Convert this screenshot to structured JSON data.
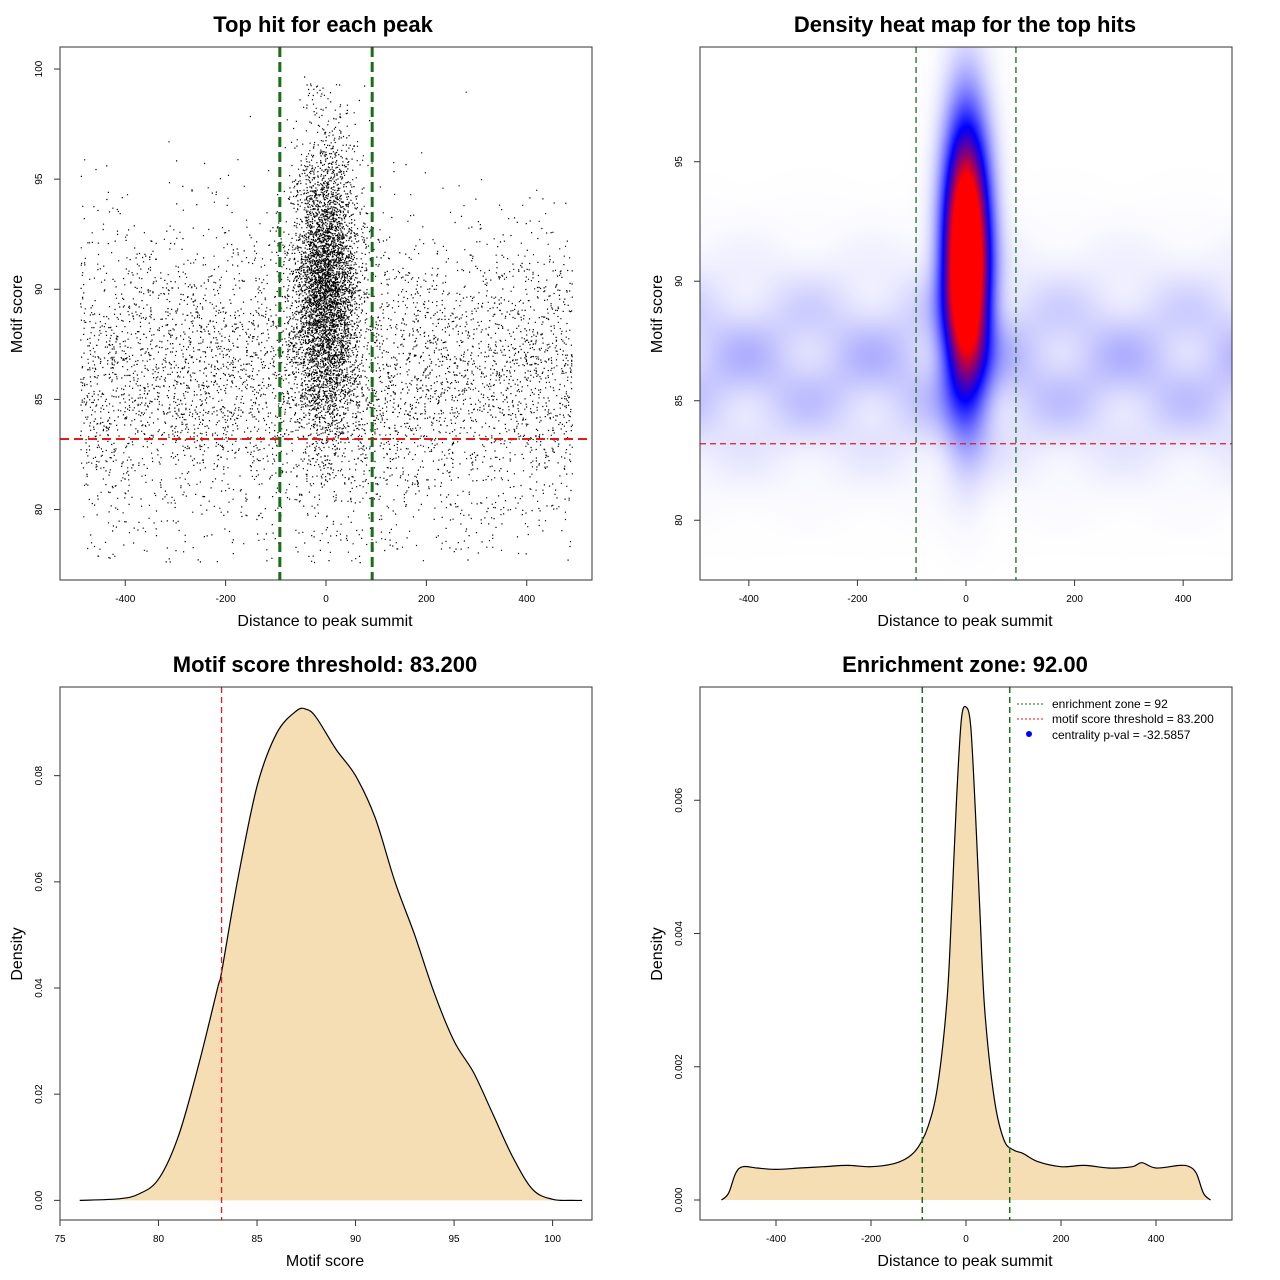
{
  "colors": {
    "threshold": "#e41a1c",
    "zone": "#1a6e1a",
    "fill": "#f5deb3",
    "point": "#000000",
    "density_low": "#ffffff",
    "density_mid": "#0000ff",
    "density_high": "#ff0000"
  },
  "chart_data": [
    {
      "id": "scatter",
      "type": "scatter",
      "title": "Top hit for each peak",
      "xlabel": "Distance to peak summit",
      "ylabel": "Motif score",
      "xlim": [
        -530,
        530
      ],
      "ylim": [
        76.8,
        101.0
      ],
      "xticks": [
        -400,
        -200,
        0,
        200,
        400
      ],
      "yticks": [
        80,
        85,
        90,
        95,
        100
      ],
      "threshold": 83.2,
      "zone": [
        -92,
        92
      ],
      "background_points": {
        "count": 5200,
        "x_range": [
          -490,
          490
        ],
        "score_mean": 86,
        "score_sd": 3.4
      },
      "central_points": {
        "count": 4800,
        "x_center": 0,
        "x_sd": 32,
        "score_mean": 90,
        "score_sd": 3.3
      }
    },
    {
      "id": "heatmap",
      "type": "heatmap",
      "title": "Density heat map for the top hits",
      "xlabel": "Distance to peak summit",
      "ylabel": "Motif score",
      "xlim": [
        -490,
        490
      ],
      "ylim": [
        77.5,
        99.8
      ],
      "xticks": [
        -400,
        -200,
        0,
        200,
        400
      ],
      "yticks": [
        80,
        85,
        90,
        95
      ],
      "threshold": 83.2,
      "zone": [
        -92,
        92
      ],
      "peak": {
        "x": 0,
        "score": 91,
        "x_sd": 28,
        "score_sd": 3.6
      },
      "background": {
        "score_mean": 86.5,
        "score_sd": 2.6
      }
    },
    {
      "id": "score-density",
      "type": "area",
      "title": "Motif score threshold: 83.200",
      "xlabel": "Motif score",
      "ylabel": "Density",
      "xlim": [
        75,
        102
      ],
      "ylim": [
        -0.0037,
        0.0967
      ],
      "xticks": [
        75,
        80,
        85,
        90,
        95,
        100
      ],
      "yticks": [
        0.0,
        0.02,
        0.04,
        0.06,
        0.08
      ],
      "ytick_labels": [
        "0.00",
        "0.02",
        "0.04",
        "0.06",
        "0.08"
      ],
      "threshold": 83.2,
      "x": [
        76,
        78,
        79,
        80,
        81,
        82,
        83,
        83.2,
        84,
        85,
        86,
        87,
        87.5,
        88,
        89,
        90,
        91,
        92,
        93,
        94,
        95,
        96,
        97,
        98,
        99,
        100,
        101,
        101.5
      ],
      "y": [
        0.0,
        0.0003,
        0.0012,
        0.004,
        0.012,
        0.025,
        0.04,
        0.043,
        0.06,
        0.078,
        0.088,
        0.0922,
        0.0925,
        0.091,
        0.085,
        0.08,
        0.072,
        0.06,
        0.05,
        0.039,
        0.03,
        0.024,
        0.016,
        0.008,
        0.002,
        0.0002,
        0.0,
        0.0
      ]
    },
    {
      "id": "distance-density",
      "type": "area",
      "title": "Enrichment zone: 92.00",
      "xlabel": "Distance to peak summit",
      "ylabel": "Density",
      "xlim": [
        -560,
        560
      ],
      "ylim": [
        -0.0003,
        0.0077
      ],
      "xticks": [
        -400,
        -200,
        0,
        200,
        400
      ],
      "yticks": [
        0.0,
        0.002,
        0.004,
        0.006
      ],
      "ytick_labels": [
        "0.000",
        "0.002",
        "0.004",
        "0.006"
      ],
      "zone": [
        -92,
        92
      ],
      "x": [
        -515,
        -500,
        -485,
        -470,
        -440,
        -400,
        -350,
        -300,
        -250,
        -200,
        -150,
        -120,
        -100,
        -80,
        -60,
        -40,
        -30,
        -20,
        -10,
        0,
        10,
        20,
        30,
        40,
        60,
        80,
        100,
        120,
        150,
        200,
        250,
        300,
        350,
        370,
        400,
        450,
        470,
        485,
        500,
        515
      ],
      "y": [
        0.0,
        0.0001,
        0.0004,
        0.0005,
        0.00048,
        0.00046,
        0.00048,
        0.0005,
        0.00052,
        0.0005,
        0.00055,
        0.00065,
        0.0008,
        0.0011,
        0.0017,
        0.003,
        0.0044,
        0.006,
        0.0072,
        0.0074,
        0.0071,
        0.0058,
        0.0042,
        0.0028,
        0.0015,
        0.0009,
        0.00075,
        0.0007,
        0.00058,
        0.0005,
        0.00052,
        0.00048,
        0.0005,
        0.00056,
        0.00048,
        0.00052,
        0.0005,
        0.0004,
        0.0001,
        0.0
      ],
      "legend": [
        {
          "label": "enrichment zone = 92",
          "style": "dotted-line",
          "color": "#1a6e1a"
        },
        {
          "label": "motif score threshold = 83.200",
          "style": "dotted-line",
          "color": "#e41a1c"
        },
        {
          "label": "centrality p-val = -32.5857",
          "style": "point",
          "color": "#0000ff"
        }
      ],
      "legend_position": "top-right"
    }
  ]
}
